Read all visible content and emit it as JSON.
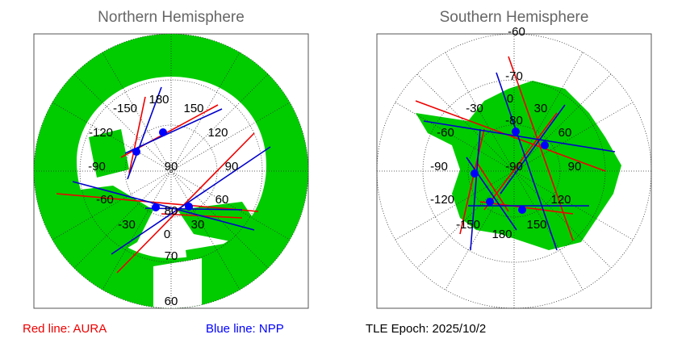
{
  "panels": [
    {
      "title": "Northern Hemisphere",
      "labels": [
        "180",
        "-150",
        "150",
        "-120",
        "120",
        "-90",
        "90",
        "90",
        "-60",
        "60",
        "-30",
        "30",
        "80",
        "0",
        "70",
        "60"
      ]
    },
    {
      "title": "Southern Hemisphere",
      "labels": [
        "-60",
        "-70",
        "0",
        "-30",
        "30",
        "-80",
        "-60",
        "60",
        "-90",
        "-90",
        "90",
        "-120",
        "120",
        "-150",
        "150",
        "180"
      ]
    }
  ],
  "footer": {
    "aura": "Red line: AURA",
    "npp": "Blue line: NPP",
    "epoch": "TLE Epoch: 2025/10/2"
  }
}
